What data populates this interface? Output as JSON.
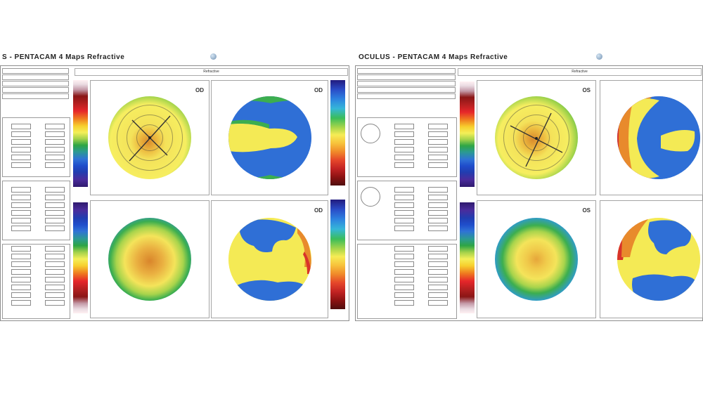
{
  "reports": {
    "od": {
      "title": "S  -  PENTACAM   4 Maps Refractive",
      "section_header": "Refractive",
      "eye_label": "OD"
    },
    "os": {
      "title": "OCULUS  -  PENTACAM   4 Maps Refractive",
      "section_header": "Refractive",
      "eye_label": "OS"
    }
  },
  "map_panels": {
    "axial": {
      "icon": "axial-curvature-map"
    },
    "elevation_front": {
      "icon": "front-elevation-map"
    },
    "corneal_thickness": {
      "icon": "corneal-thickness-map"
    },
    "elevation_back": {
      "icon": "back-elevation-map"
    }
  },
  "colors": {
    "map_yellow": "#f4ea55",
    "map_green": "#3cae4f",
    "map_blue": "#2f6fd6",
    "map_orange": "#e88a2c",
    "map_red": "#d9332a",
    "frame_gray": "#8d8d8d"
  }
}
